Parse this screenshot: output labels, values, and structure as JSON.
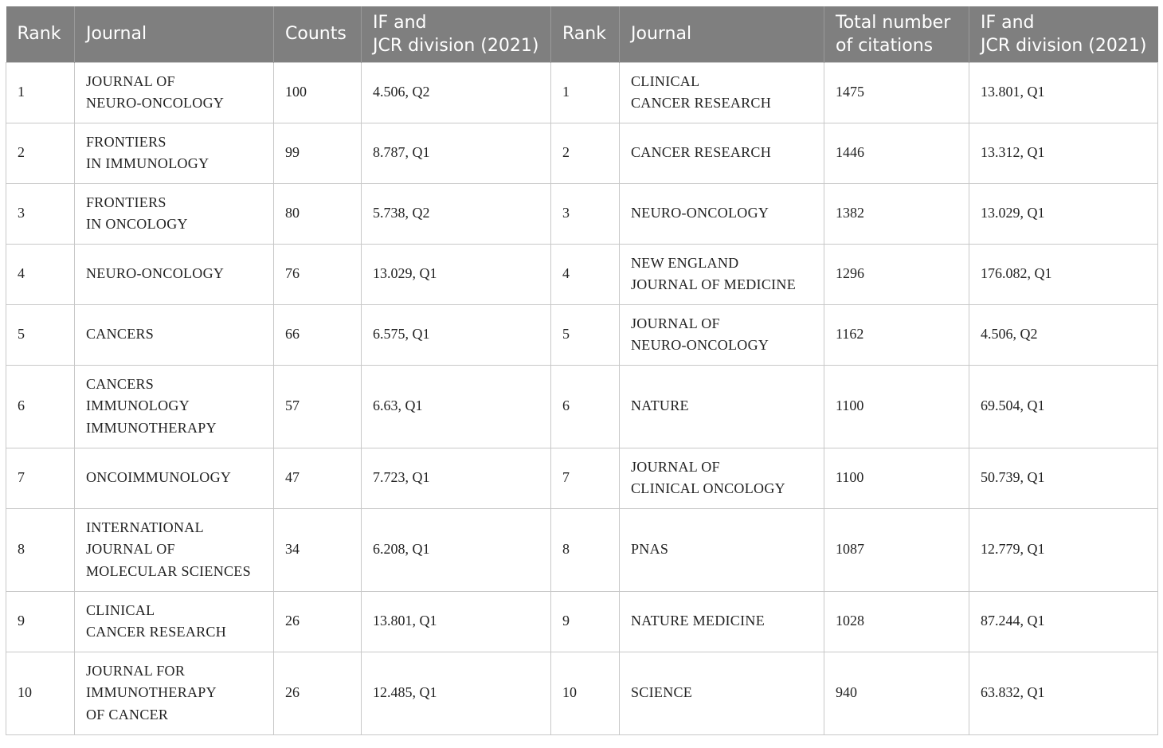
{
  "headers": [
    "Rank",
    "Journal",
    "Counts",
    "IF and\nJCR division (2021)",
    "Rank",
    "Journal",
    "Total number\nof citations",
    "IF and\nJCR division (2021)"
  ],
  "rows": [
    [
      "1",
      "JOURNAL OF\nNEURO-ONCOLOGY",
      "100",
      "4.506, Q2",
      "1",
      "CLINICAL\nCANCER RESEARCH",
      "1475",
      "13.801, Q1"
    ],
    [
      "2",
      "FRONTIERS\nIN IMMUNOLOGY",
      "99",
      "8.787, Q1",
      "2",
      "CANCER RESEARCH",
      "1446",
      "13.312, Q1"
    ],
    [
      "3",
      "FRONTIERS\nIN ONCOLOGY",
      "80",
      "5.738, Q2",
      "3",
      "NEURO-ONCOLOGY",
      "1382",
      "13.029, Q1"
    ],
    [
      "4",
      "NEURO-ONCOLOGY",
      "76",
      "13.029, Q1",
      "4",
      "NEW ENGLAND\nJOURNAL OF MEDICINE",
      "1296",
      "176.082, Q1"
    ],
    [
      "5",
      "CANCERS",
      "66",
      "6.575, Q1",
      "5",
      "JOURNAL OF\nNEURO-ONCOLOGY",
      "1162",
      "4.506, Q2"
    ],
    [
      "6",
      "CANCERS\nIMMUNOLOGY\nIMMUNOTHERAPY",
      "57",
      "6.63, Q1",
      "6",
      "NATURE",
      "1100",
      "69.504, Q1"
    ],
    [
      "7",
      "ONCOIMMUNOLOGY",
      "47",
      "7.723, Q1",
      "7",
      "JOURNAL OF\nCLINICAL ONCOLOGY",
      "1100",
      "50.739, Q1"
    ],
    [
      "8",
      "INTERNATIONAL\nJOURNAL OF\nMOLECULAR SCIENCES",
      "34",
      "6.208, Q1",
      "8",
      "PNAS",
      "1087",
      "12.779, Q1"
    ],
    [
      "9",
      "CLINICAL\nCANCER RESEARCH",
      "26",
      "13.801, Q1",
      "9",
      "NATURE MEDICINE",
      "1028",
      "87.244, Q1"
    ],
    [
      "10",
      "JOURNAL FOR\nIMMUNOTHERAPY\nOF CANCER",
      "26",
      "12.485, Q1",
      "10",
      "SCIENCE",
      "940",
      "63.832, Q1"
    ]
  ],
  "colors": {
    "header_bg": "#7f7f7f",
    "header_text": "#ffffff",
    "grid": "#c8c8c8",
    "body_text": "#222222"
  }
}
